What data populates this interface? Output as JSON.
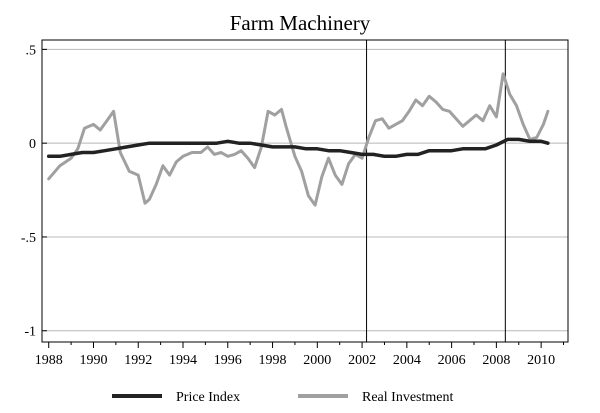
{
  "chart_data": {
    "type": "line",
    "title": "Farm Machinery",
    "xlabel": "",
    "ylabel": "",
    "xlim": [
      1987.7,
      2011.2
    ],
    "ylim": [
      -1.06,
      0.55
    ],
    "x_ticks": [
      1988,
      1990,
      1992,
      1994,
      1996,
      1998,
      2000,
      2002,
      2004,
      2006,
      2008,
      2010
    ],
    "x_tick_labels": [
      "1988",
      "1990",
      "1992",
      "1994",
      "1996",
      "1998",
      "2000",
      "2002",
      "2004",
      "2006",
      "2008",
      "2010"
    ],
    "y_ticks": [
      0.5,
      0,
      -0.5,
      -1
    ],
    "y_tick_labels": [
      ".5",
      "0",
      "-.5",
      "-1"
    ],
    "grid": "horizontal",
    "vertical_lines": [
      2002.2,
      2008.4
    ],
    "legend_position": "bottom",
    "series": [
      {
        "name": "Price Index",
        "color": "#222222",
        "x": [
          1988.0,
          1988.5,
          1989.0,
          1989.5,
          1990.0,
          1990.5,
          1991.0,
          1991.5,
          1992.0,
          1992.5,
          1993.0,
          1993.5,
          1994.0,
          1994.5,
          1995.0,
          1995.5,
          1996.0,
          1996.5,
          1997.0,
          1997.5,
          1998.0,
          1998.5,
          1999.0,
          1999.5,
          2000.0,
          2000.5,
          2001.0,
          2001.5,
          2002.0,
          2002.5,
          2003.0,
          2003.5,
          2004.0,
          2004.5,
          2005.0,
          2005.5,
          2006.0,
          2006.5,
          2007.0,
          2007.5,
          2008.0,
          2008.5,
          2009.0,
          2009.5,
          2010.0,
          2010.3
        ],
        "y": [
          -0.07,
          -0.07,
          -0.06,
          -0.05,
          -0.05,
          -0.04,
          -0.03,
          -0.02,
          -0.01,
          0.0,
          0.0,
          0.0,
          0.0,
          0.0,
          0.0,
          0.0,
          0.01,
          0.0,
          0.0,
          -0.01,
          -0.02,
          -0.02,
          -0.02,
          -0.03,
          -0.03,
          -0.04,
          -0.04,
          -0.05,
          -0.06,
          -0.06,
          -0.07,
          -0.07,
          -0.06,
          -0.06,
          -0.04,
          -0.04,
          -0.04,
          -0.03,
          -0.03,
          -0.03,
          -0.01,
          0.02,
          0.02,
          0.01,
          0.01,
          0.0
        ]
      },
      {
        "name": "Real Investment",
        "color": "#a0a0a0",
        "x": [
          1988.0,
          1988.5,
          1989.0,
          1989.3,
          1989.6,
          1990.0,
          1990.3,
          1990.6,
          1990.9,
          1991.2,
          1991.6,
          1992.0,
          1992.3,
          1992.5,
          1992.8,
          1993.1,
          1993.4,
          1993.7,
          1994.0,
          1994.4,
          1994.8,
          1995.1,
          1995.4,
          1995.7,
          1996.0,
          1996.3,
          1996.6,
          1996.9,
          1997.2,
          1997.5,
          1997.8,
          1998.1,
          1998.4,
          1998.6,
          1999.0,
          1999.3,
          1999.6,
          1999.9,
          2000.2,
          2000.5,
          2000.8,
          2001.1,
          2001.4,
          2001.7,
          2002.0,
          2002.3,
          2002.6,
          2002.9,
          2003.2,
          2003.5,
          2003.8,
          2004.1,
          2004.4,
          2004.7,
          2005.0,
          2005.3,
          2005.6,
          2005.9,
          2006.2,
          2006.5,
          2006.8,
          2007.1,
          2007.4,
          2007.7,
          2008.0,
          2008.3,
          2008.6,
          2008.9,
          2009.2,
          2009.5,
          2009.8,
          2010.1,
          2010.3
        ],
        "y": [
          -0.19,
          -0.12,
          -0.08,
          -0.03,
          0.08,
          0.1,
          0.07,
          0.12,
          0.17,
          -0.05,
          -0.15,
          -0.17,
          -0.32,
          -0.3,
          -0.22,
          -0.12,
          -0.17,
          -0.1,
          -0.07,
          -0.05,
          -0.05,
          -0.02,
          -0.06,
          -0.05,
          -0.07,
          -0.06,
          -0.04,
          -0.08,
          -0.13,
          -0.02,
          0.17,
          0.15,
          0.18,
          0.09,
          -0.07,
          -0.15,
          -0.28,
          -0.33,
          -0.18,
          -0.08,
          -0.17,
          -0.22,
          -0.11,
          -0.06,
          -0.08,
          0.03,
          0.12,
          0.13,
          0.08,
          0.1,
          0.12,
          0.17,
          0.23,
          0.2,
          0.25,
          0.22,
          0.18,
          0.17,
          0.13,
          0.09,
          0.12,
          0.15,
          0.12,
          0.2,
          0.14,
          0.37,
          0.26,
          0.2,
          0.1,
          0.02,
          0.03,
          0.1,
          0.17
        ]
      }
    ]
  }
}
